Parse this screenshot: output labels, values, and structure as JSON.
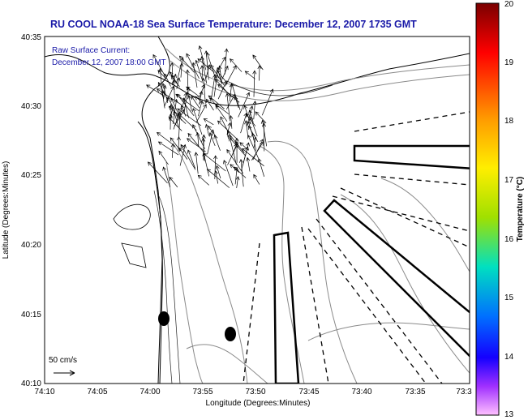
{
  "title": "RU COOL  NOAA-18  Sea Surface Temperature:  December 12, 2007 1735 GMT",
  "annotation": {
    "line1": "Raw Surface Current:",
    "line2": "December 12, 2007 18:00 GMT"
  },
  "scale_label": "50 cm/s",
  "axes": {
    "xlabel": "Longitude (Degrees:Minutes)",
    "ylabel": "Latitude (Degrees:Minutes)",
    "xticks": [
      "74:10",
      "74:05",
      "74:00",
      "73:55",
      "73:50",
      "73:45",
      "73:40",
      "73:35",
      "73:3"
    ],
    "yticks": [
      "40:35",
      "40:30",
      "40:25",
      "40:20",
      "40:15",
      "40:10"
    ]
  },
  "colorbar": {
    "label": "Temperature (°C)",
    "ticks": [
      "20",
      "19",
      "18",
      "17",
      "16",
      "15",
      "14",
      "13"
    ],
    "colors": [
      "#7a0000",
      "#ff0000",
      "#ff9a00",
      "#ffee00",
      "#a0e000",
      "#00e0c0",
      "#0070ff",
      "#1400ff",
      "#ff80ff"
    ]
  }
}
